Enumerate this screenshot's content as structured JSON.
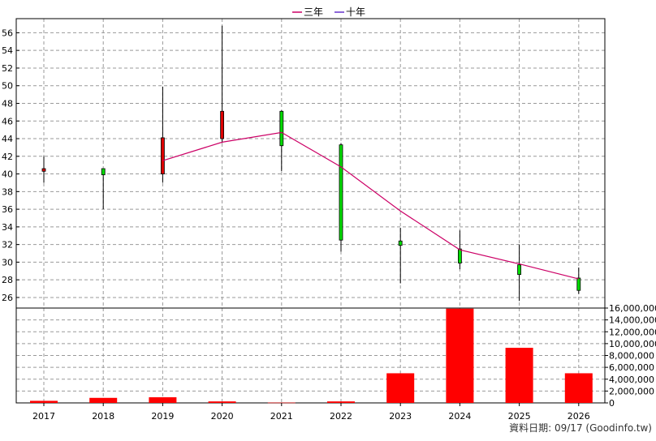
{
  "chart_data": [
    {
      "type": "candlestick",
      "legend": [
        {
          "label": "三年",
          "color": "#cc0066"
        },
        {
          "label": "十年",
          "color": "#6633cc"
        }
      ],
      "years": [
        "2017",
        "2018",
        "2019",
        "2020",
        "2021",
        "2022",
        "2023",
        "2024",
        "2025",
        "2026"
      ],
      "candles": [
        {
          "year": "2017",
          "open": 40.3,
          "close": 40.6,
          "high": 42.0,
          "low": 39.0,
          "color": "#dd0000"
        },
        {
          "year": "2018",
          "open": 40.6,
          "close": 39.9,
          "high": 40.6,
          "low": 36.0,
          "color": "#00dd00"
        },
        {
          "year": "2019",
          "open": 40.0,
          "close": 44.1,
          "high": 49.9,
          "low": 39.0,
          "color": "#dd0000"
        },
        {
          "year": "2020",
          "open": 44.0,
          "close": 47.1,
          "high": 56.8,
          "low": 43.5,
          "color": "#dd0000"
        },
        {
          "year": "2021",
          "open": 47.1,
          "close": 43.2,
          "high": 47.2,
          "low": 40.3,
          "color": "#00dd00"
        },
        {
          "year": "2022",
          "open": 43.3,
          "close": 32.5,
          "high": 43.5,
          "low": 31.2,
          "color": "#00dd00"
        },
        {
          "year": "2023",
          "open": 32.4,
          "close": 31.9,
          "high": 33.9,
          "low": 27.6,
          "color": "#00dd00"
        },
        {
          "year": "2024",
          "open": 31.5,
          "close": 29.9,
          "high": 33.6,
          "low": 29.2,
          "color": "#00dd00"
        },
        {
          "year": "2025",
          "open": 29.7,
          "close": 28.6,
          "high": 32.0,
          "low": 25.6,
          "color": "#00dd00"
        },
        {
          "year": "2026",
          "open": 28.2,
          "close": 26.8,
          "high": 29.4,
          "low": 26.4,
          "color": "#00dd00"
        }
      ],
      "ma3_line": {
        "name": "三年",
        "color": "#cc0066",
        "points": [
          {
            "year": "2019",
            "value": 41.5
          },
          {
            "year": "2020",
            "value": 43.6
          },
          {
            "year": "2021",
            "value": 44.7
          },
          {
            "year": "2022",
            "value": 40.8
          },
          {
            "year": "2023",
            "value": 35.8
          },
          {
            "year": "2024",
            "value": 31.4
          },
          {
            "year": "2025",
            "value": 29.8
          },
          {
            "year": "2026",
            "value": 28.1
          }
        ]
      },
      "y_ticks": [
        26,
        28,
        30,
        32,
        34,
        36,
        38,
        40,
        42,
        44,
        46,
        48,
        50,
        52,
        54,
        56
      ],
      "ylim": [
        24.8,
        57.6
      ],
      "grid": true
    },
    {
      "type": "bar",
      "categories": [
        "2017",
        "2018",
        "2019",
        "2020",
        "2021",
        "2022",
        "2023",
        "2024",
        "2025",
        "2026"
      ],
      "values": [
        350000,
        850000,
        950000,
        250000,
        50000,
        250000,
        5000000,
        15900000,
        9300000,
        5000000
      ],
      "color": "#ff0000",
      "y_ticks": [
        0,
        2000000,
        4000000,
        6000000,
        8000000,
        10000000,
        12000000,
        14000000,
        16000000
      ],
      "y_tick_labels": [
        "0",
        "2,000,000",
        "4,000,000",
        "6,000,000",
        "8,000,000",
        "10,000,000",
        "12,000,000",
        "14,000,000",
        "16,000,000"
      ],
      "ylim": [
        0,
        16000000
      ],
      "grid": true
    }
  ],
  "footer": {
    "source": "資料日期: 09/17  (Goodinfo.tw)"
  }
}
